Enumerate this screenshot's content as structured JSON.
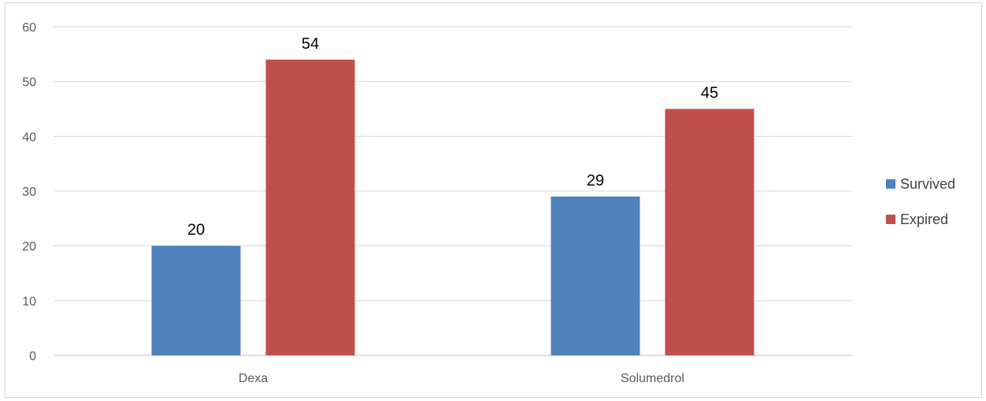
{
  "chart_data": {
    "type": "bar",
    "title": "",
    "xlabel": "",
    "ylabel": "",
    "categories": [
      "Dexa",
      "Solumedrol"
    ],
    "series": [
      {
        "name": "Survived",
        "values": [
          20,
          29
        ],
        "color": "#4F81BD"
      },
      {
        "name": "Expired",
        "values": [
          54,
          45
        ],
        "color": "#C0504D"
      }
    ],
    "ylim": [
      0,
      60
    ],
    "yticks": [
      0,
      10,
      20,
      30,
      40,
      50,
      60
    ],
    "grid": true,
    "data_labels": true,
    "legend_position": "right"
  }
}
